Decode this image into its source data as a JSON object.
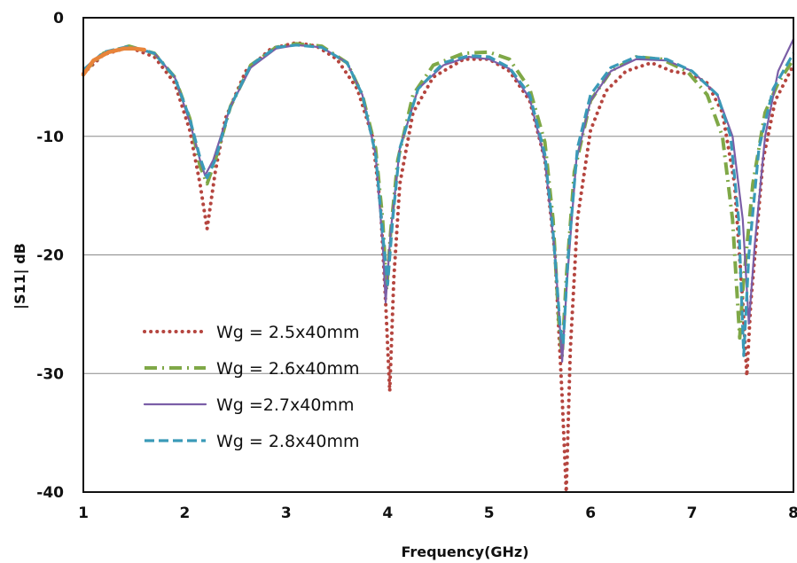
{
  "chart_data": {
    "type": "line",
    "xlabel": "Frequency(GHz)",
    "ylabel": "|S11| dB",
    "xlim": [
      1,
      8
    ],
    "ylim": [
      -40,
      0
    ],
    "x_ticks": [
      "1",
      "2",
      "3",
      "4",
      "5",
      "6",
      "7",
      "8"
    ],
    "y_ticks": [
      "0",
      "-10",
      "-20",
      "-30",
      "-40"
    ],
    "grid": "horizontal",
    "legend_position": "bottom-left",
    "series": [
      {
        "name": "Wg = 2.5x40mm",
        "color": "#b5453f",
        "style": "dotted",
        "points": [
          [
            1,
            -4.7
          ],
          [
            1.2,
            -3.1
          ],
          [
            1.45,
            -2.5
          ],
          [
            1.7,
            -3.3
          ],
          [
            1.9,
            -5.5
          ],
          [
            2.05,
            -9.5
          ],
          [
            2.15,
            -14
          ],
          [
            2.22,
            -17.8
          ],
          [
            2.3,
            -13
          ],
          [
            2.4,
            -8.5
          ],
          [
            2.6,
            -4.5
          ],
          [
            2.85,
            -2.6
          ],
          [
            3.1,
            -2.1
          ],
          [
            3.3,
            -2.4
          ],
          [
            3.5,
            -3.5
          ],
          [
            3.7,
            -6
          ],
          [
            3.85,
            -10
          ],
          [
            3.93,
            -16
          ],
          [
            3.98,
            -24
          ],
          [
            4.02,
            -31.5
          ],
          [
            4.06,
            -22
          ],
          [
            4.12,
            -14
          ],
          [
            4.25,
            -8
          ],
          [
            4.45,
            -5
          ],
          [
            4.75,
            -3.5
          ],
          [
            5,
            -3.5
          ],
          [
            5.2,
            -4.5
          ],
          [
            5.4,
            -7
          ],
          [
            5.55,
            -12
          ],
          [
            5.65,
            -20
          ],
          [
            5.72,
            -32
          ],
          [
            5.76,
            -40
          ],
          [
            5.8,
            -28
          ],
          [
            5.87,
            -17
          ],
          [
            6,
            -9.5
          ],
          [
            6.15,
            -6.2
          ],
          [
            6.35,
            -4.5
          ],
          [
            6.6,
            -3.8
          ],
          [
            6.8,
            -4.5
          ],
          [
            7,
            -4.8
          ],
          [
            7.15,
            -5.5
          ],
          [
            7.3,
            -8
          ],
          [
            7.42,
            -14
          ],
          [
            7.5,
            -24
          ],
          [
            7.54,
            -30.2
          ],
          [
            7.58,
            -24
          ],
          [
            7.7,
            -12
          ],
          [
            7.82,
            -7
          ],
          [
            8,
            -4
          ]
        ]
      },
      {
        "name": "Wg = 2.6x40mm",
        "color": "#7fa847",
        "style": "dash-dot",
        "points": [
          [
            1,
            -4.6
          ],
          [
            1.2,
            -3
          ],
          [
            1.45,
            -2.4
          ],
          [
            1.7,
            -3
          ],
          [
            1.9,
            -5
          ],
          [
            2.05,
            -8.5
          ],
          [
            2.15,
            -12.5
          ],
          [
            2.22,
            -14
          ],
          [
            2.3,
            -12
          ],
          [
            2.45,
            -7.5
          ],
          [
            2.65,
            -4
          ],
          [
            2.9,
            -2.5
          ],
          [
            3.1,
            -2.2
          ],
          [
            3.35,
            -2.4
          ],
          [
            3.6,
            -3.8
          ],
          [
            3.75,
            -6.5
          ],
          [
            3.88,
            -11
          ],
          [
            3.95,
            -17
          ],
          [
            3.99,
            -23
          ],
          [
            4.03,
            -18
          ],
          [
            4.1,
            -12
          ],
          [
            4.25,
            -6.5
          ],
          [
            4.45,
            -4
          ],
          [
            4.75,
            -3
          ],
          [
            5,
            -2.9
          ],
          [
            5.2,
            -3.5
          ],
          [
            5.4,
            -6
          ],
          [
            5.55,
            -10.5
          ],
          [
            5.63,
            -17
          ],
          [
            5.69,
            -26
          ],
          [
            5.72,
            -28.5
          ],
          [
            5.76,
            -22
          ],
          [
            5.84,
            -13
          ],
          [
            6,
            -7
          ],
          [
            6.2,
            -4.5
          ],
          [
            6.45,
            -3.3
          ],
          [
            6.7,
            -3.5
          ],
          [
            6.95,
            -4.5
          ],
          [
            7.15,
            -6.5
          ],
          [
            7.3,
            -10
          ],
          [
            7.4,
            -17
          ],
          [
            7.47,
            -27
          ],
          [
            7.5,
            -23
          ],
          [
            7.6,
            -14
          ],
          [
            7.72,
            -8
          ],
          [
            7.85,
            -5.5
          ],
          [
            8,
            -3.5
          ]
        ]
      },
      {
        "name": "Wg =2.7x40mm",
        "color": "#7b5ea7",
        "style": "solid",
        "points": [
          [
            1,
            -4.5
          ],
          [
            1.2,
            -3
          ],
          [
            1.45,
            -2.5
          ],
          [
            1.7,
            -3
          ],
          [
            1.9,
            -5
          ],
          [
            2.05,
            -8.8
          ],
          [
            2.15,
            -12
          ],
          [
            2.2,
            -13.3
          ],
          [
            2.28,
            -12
          ],
          [
            2.45,
            -7.5
          ],
          [
            2.65,
            -4.2
          ],
          [
            2.9,
            -2.6
          ],
          [
            3.1,
            -2.3
          ],
          [
            3.35,
            -2.5
          ],
          [
            3.6,
            -3.8
          ],
          [
            3.75,
            -6.5
          ],
          [
            3.88,
            -11.5
          ],
          [
            3.95,
            -19
          ],
          [
            3.98,
            -24
          ],
          [
            4.03,
            -18
          ],
          [
            4.12,
            -11
          ],
          [
            4.3,
            -6
          ],
          [
            4.55,
            -4
          ],
          [
            4.8,
            -3.3
          ],
          [
            5,
            -3.5
          ],
          [
            5.2,
            -4.3
          ],
          [
            5.4,
            -6.8
          ],
          [
            5.55,
            -12
          ],
          [
            5.65,
            -20
          ],
          [
            5.72,
            -29
          ],
          [
            5.77,
            -22
          ],
          [
            5.86,
            -12
          ],
          [
            6,
            -7
          ],
          [
            6.2,
            -4.5
          ],
          [
            6.45,
            -3.5
          ],
          [
            6.75,
            -3.6
          ],
          [
            7,
            -4.5
          ],
          [
            7.25,
            -6.5
          ],
          [
            7.4,
            -10
          ],
          [
            7.5,
            -17
          ],
          [
            7.56,
            -25.8
          ],
          [
            7.62,
            -19
          ],
          [
            7.72,
            -10
          ],
          [
            7.85,
            -4.5
          ],
          [
            8,
            -1.8
          ]
        ]
      },
      {
        "name": "Wg = 2.8x40mm",
        "color": "#3a9ab8",
        "style": "dashed",
        "points": [
          [
            1,
            -4.4
          ],
          [
            1.2,
            -2.9
          ],
          [
            1.45,
            -2.4
          ],
          [
            1.7,
            -3
          ],
          [
            1.9,
            -5
          ],
          [
            2.05,
            -8.5
          ],
          [
            2.15,
            -11.8
          ],
          [
            2.22,
            -13.5
          ],
          [
            2.3,
            -12
          ],
          [
            2.45,
            -7.5
          ],
          [
            2.65,
            -4
          ],
          [
            2.9,
            -2.5
          ],
          [
            3.1,
            -2.3
          ],
          [
            3.35,
            -2.5
          ],
          [
            3.6,
            -3.8
          ],
          [
            3.75,
            -6.5
          ],
          [
            3.88,
            -11.5
          ],
          [
            3.96,
            -19
          ],
          [
            4,
            -22.5
          ],
          [
            4.05,
            -17
          ],
          [
            4.12,
            -11
          ],
          [
            4.3,
            -6
          ],
          [
            4.55,
            -3.8
          ],
          [
            4.8,
            -3.2
          ],
          [
            5,
            -3.3
          ],
          [
            5.2,
            -4.2
          ],
          [
            5.4,
            -6.5
          ],
          [
            5.55,
            -11.5
          ],
          [
            5.63,
            -18
          ],
          [
            5.7,
            -26
          ],
          [
            5.73,
            -27.5
          ],
          [
            5.78,
            -20
          ],
          [
            5.87,
            -11
          ],
          [
            6,
            -6.5
          ],
          [
            6.2,
            -4.2
          ],
          [
            6.45,
            -3.3
          ],
          [
            6.75,
            -3.5
          ],
          [
            7,
            -4.5
          ],
          [
            7.25,
            -6.5
          ],
          [
            7.38,
            -10
          ],
          [
            7.46,
            -17
          ],
          [
            7.51,
            -28.5
          ],
          [
            7.56,
            -20
          ],
          [
            7.66,
            -11
          ],
          [
            7.8,
            -6
          ],
          [
            8,
            -3
          ]
        ]
      }
    ],
    "highlight": {
      "color": "#e8843a",
      "points": [
        [
          1,
          -4.8
        ],
        [
          1.1,
          -3.6
        ],
        [
          1.25,
          -2.9
        ],
        [
          1.4,
          -2.6
        ],
        [
          1.5,
          -2.6
        ],
        [
          1.6,
          -2.7
        ]
      ]
    }
  }
}
